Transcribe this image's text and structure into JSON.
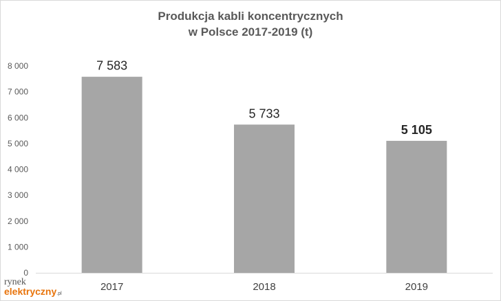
{
  "chart_data": {
    "type": "bar",
    "title_line1": "Produkcja kabli koncentrycznych",
    "title_line2": "w Polsce 2017-2019 (t)",
    "categories": [
      "2017",
      "2018",
      "2019"
    ],
    "values": [
      7583,
      5733,
      5105
    ],
    "data_labels": [
      "7 583",
      "5 733",
      "5 105"
    ],
    "emphasized_label_index": 2,
    "y_ticks": [
      0,
      1000,
      2000,
      3000,
      4000,
      5000,
      6000,
      7000,
      8000
    ],
    "y_tick_labels": [
      "0",
      "1 000",
      "2 000",
      "3 000",
      "4 000",
      "5 000",
      "6 000",
      "7 000",
      "8 000"
    ],
    "ylim": [
      0,
      8000
    ],
    "grid": false,
    "legend": "none",
    "bar_color": "#a6a6a6"
  },
  "logo": {
    "line1": "rynek",
    "line2": "elektryczny",
    "suffix": ".pl"
  },
  "colors": {
    "axis": "#d9d9d9",
    "logo_accent": "#e8740c"
  }
}
